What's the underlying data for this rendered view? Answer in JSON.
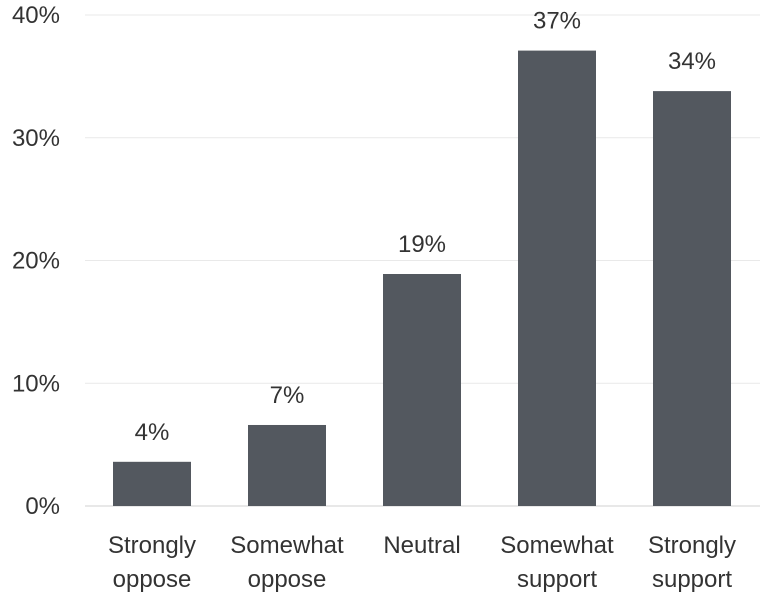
{
  "chart_data": {
    "type": "bar",
    "categories": [
      [
        "Strongly",
        "oppose"
      ],
      [
        "Somewhat",
        "oppose"
      ],
      [
        "Neutral"
      ],
      [
        "Somewhat",
        "support"
      ],
      [
        "Strongly",
        "support"
      ]
    ],
    "values": [
      3.6,
      6.6,
      18.9,
      37.1,
      33.8
    ],
    "value_labels": [
      "4%",
      "7%",
      "19%",
      "37%",
      "34%"
    ],
    "yticks": [
      0,
      10,
      20,
      30,
      40
    ],
    "ytick_labels": [
      "0%",
      "10%",
      "20%",
      "30%",
      "40%"
    ],
    "ylim": [
      0,
      40
    ],
    "grid": true,
    "bar_color": "#53585f",
    "title": "",
    "xlabel": "",
    "ylabel": ""
  }
}
